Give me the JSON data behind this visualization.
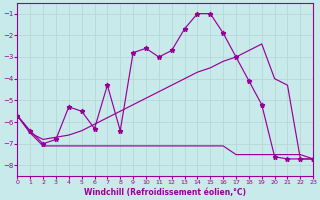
{
  "background_color": "#c8eaea",
  "grid_color": "#b8d8d8",
  "line_color": "#990099",
  "xlim": [
    0,
    23
  ],
  "ylim": [
    -8.5,
    -0.5
  ],
  "yticks": [
    -8,
    -7,
    -6,
    -5,
    -4,
    -3,
    -2,
    -1
  ],
  "xticks": [
    0,
    1,
    2,
    3,
    4,
    5,
    6,
    7,
    8,
    9,
    10,
    11,
    12,
    13,
    14,
    15,
    16,
    17,
    18,
    19,
    20,
    21,
    22,
    23
  ],
  "xlabel": "Windchill (Refroidissement éolien,°C)",
  "jagged_x": [
    0,
    1,
    2,
    3,
    4,
    5,
    6,
    7,
    8,
    9,
    10,
    11,
    12,
    13,
    14,
    15,
    16,
    17,
    18,
    19,
    20,
    21,
    22,
    23
  ],
  "jagged_y": [
    -5.7,
    -6.4,
    -7.0,
    -6.8,
    -5.3,
    -5.5,
    -6.3,
    -4.3,
    -6.4,
    -2.8,
    -2.6,
    -3.0,
    -2.7,
    -1.7,
    -1.0,
    -1.0,
    -1.9,
    -3.0,
    -4.1,
    -5.2,
    -7.6,
    -7.7,
    -7.7,
    -7.7
  ],
  "flat_x": [
    0,
    1,
    2,
    3,
    4,
    5,
    6,
    7,
    8,
    9,
    10,
    11,
    12,
    13,
    14,
    15,
    16,
    17,
    18,
    19,
    20,
    21,
    22,
    23
  ],
  "flat_y": [
    -5.7,
    -6.5,
    -7.1,
    -7.1,
    -7.1,
    -7.1,
    -7.1,
    -7.1,
    -7.1,
    -7.1,
    -7.1,
    -7.1,
    -7.1,
    -7.1,
    -7.1,
    -7.1,
    -7.1,
    -7.5,
    -7.5,
    -7.5,
    -7.5,
    -7.5,
    -7.5,
    -7.7
  ],
  "diag_x": [
    0,
    1,
    2,
    3,
    4,
    5,
    6,
    7,
    8,
    9,
    10,
    11,
    12,
    13,
    14,
    15,
    16,
    17,
    18,
    19,
    20,
    21,
    22,
    23
  ],
  "diag_y": [
    -5.7,
    -6.5,
    -6.8,
    -6.7,
    -6.6,
    -6.4,
    -6.1,
    -5.8,
    -5.5,
    -5.2,
    -4.9,
    -4.6,
    -4.3,
    -4.0,
    -3.7,
    -3.5,
    -3.2,
    -3.0,
    -2.7,
    -2.4,
    -4.0,
    -4.3,
    -7.7,
    -7.7
  ]
}
